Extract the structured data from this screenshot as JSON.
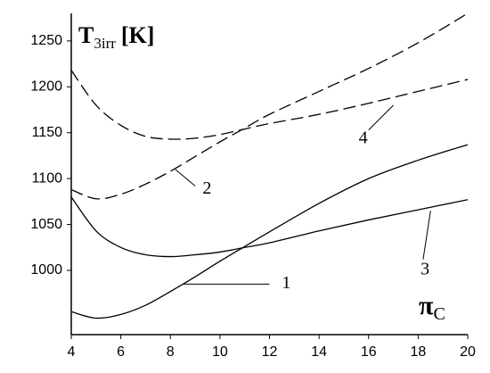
{
  "chart_data": {
    "type": "line",
    "y_label": "T",
    "y_label_sub": "3irr",
    "y_label_unit": "[K]",
    "x_label": "π",
    "x_label_sub": "C",
    "x": [
      4,
      5,
      6,
      7,
      8,
      9,
      10,
      11,
      12,
      14,
      16,
      18,
      20
    ],
    "series": [
      {
        "name": "1",
        "color": "#000000",
        "dashed": false,
        "values": [
          955,
          948,
          952,
          962,
          977,
          993,
          1010,
          1026,
          1042,
          1073,
          1100,
          1120,
          1137
        ]
      },
      {
        "name": "2",
        "color": "#000000",
        "dashed": true,
        "values": [
          1088,
          1078,
          1083,
          1094,
          1108,
          1124,
          1140,
          1155,
          1170,
          1195,
          1220,
          1248,
          1280
        ]
      },
      {
        "name": "3",
        "color": "#000000",
        "dashed": false,
        "values": [
          1080,
          1043,
          1025,
          1017,
          1015,
          1017,
          1020,
          1025,
          1030,
          1043,
          1055,
          1066,
          1077
        ]
      },
      {
        "name": "4",
        "color": "#000000",
        "dashed": true,
        "values": [
          1218,
          1180,
          1158,
          1146,
          1143,
          1144,
          1148,
          1154,
          1160,
          1170,
          1182,
          1195,
          1208
        ]
      }
    ],
    "xlim": [
      4,
      20
    ],
    "xticks": [
      4,
      6,
      8,
      10,
      12,
      14,
      16,
      18,
      20
    ],
    "ylim": [
      930,
      1280
    ],
    "yticks": [
      1000,
      1050,
      1100,
      1150,
      1200,
      1250
    ],
    "grid": false
  }
}
